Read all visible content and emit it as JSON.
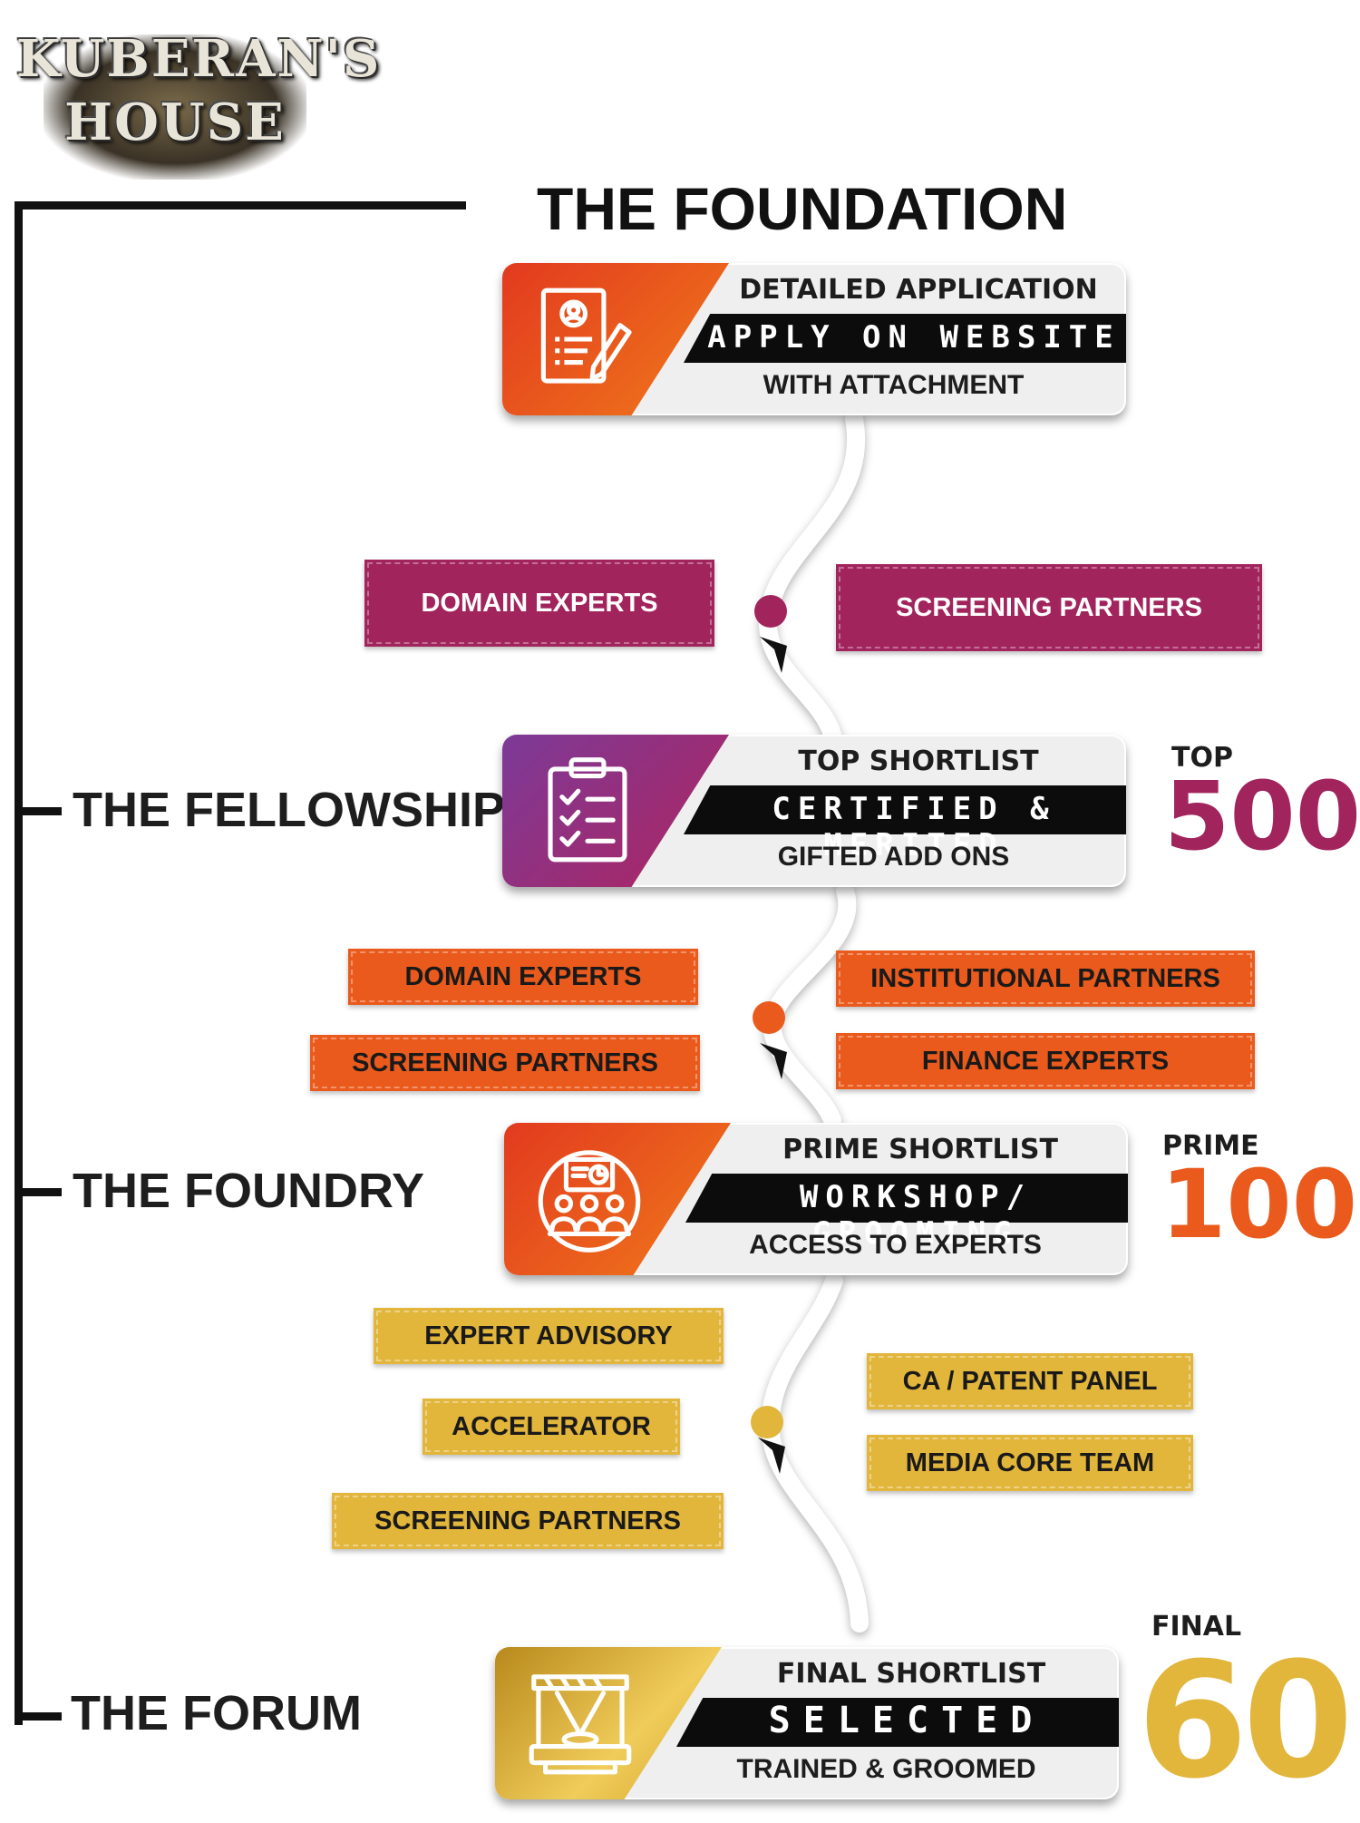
{
  "logo": {
    "text": "KUBERAN'S HOUSE"
  },
  "header": {
    "title": "THE FOUNDATION"
  },
  "colors": {
    "purple": "#a2245d",
    "orange": "#ea5a1c",
    "gold": "#e2b53b"
  },
  "cards": [
    {
      "line1": "DETAILED APPLICATION",
      "line2": "APPLY ON WEBSITE",
      "line3": "WITH ATTACHMENT",
      "icon": "application-form-icon"
    },
    {
      "line1": "TOP SHORTLIST",
      "line2": "CERTIFIED & MERITED",
      "line3": "GIFTED ADD ONS",
      "icon": "clipboard-checklist-icon"
    },
    {
      "line1": "PRIME SHORTLIST",
      "line2": "WORKSHOP/ GROOMING",
      "line3": "ACCESS TO EXPERTS",
      "icon": "workshop-presentation-icon"
    },
    {
      "line1": "FINAL SHORTLIST",
      "line2": "SELECTED",
      "line3": "TRAINED & GROOMED",
      "icon": "stage-podium-icon"
    }
  ],
  "stages": [
    "THE FELLOWSHIP",
    "THE FOUNDRY",
    "THE FORUM"
  ],
  "counts": [
    {
      "label": "TOP",
      "value": "500"
    },
    {
      "label": "PRIME",
      "value": "100"
    },
    {
      "label": "FINAL",
      "value": "60"
    }
  ],
  "tags": {
    "group1": [
      "DOMAIN EXPERTS",
      "SCREENING PARTNERS"
    ],
    "group2": [
      "DOMAIN EXPERTS",
      "INSTITUTIONAL PARTNERS",
      "SCREENING PARTNERS",
      "FINANCE EXPERTS"
    ],
    "group3": [
      "EXPERT ADVISORY",
      "CA / PATENT PANEL",
      "ACCELERATOR",
      "MEDIA CORE TEAM",
      "SCREENING PARTNERS"
    ]
  }
}
